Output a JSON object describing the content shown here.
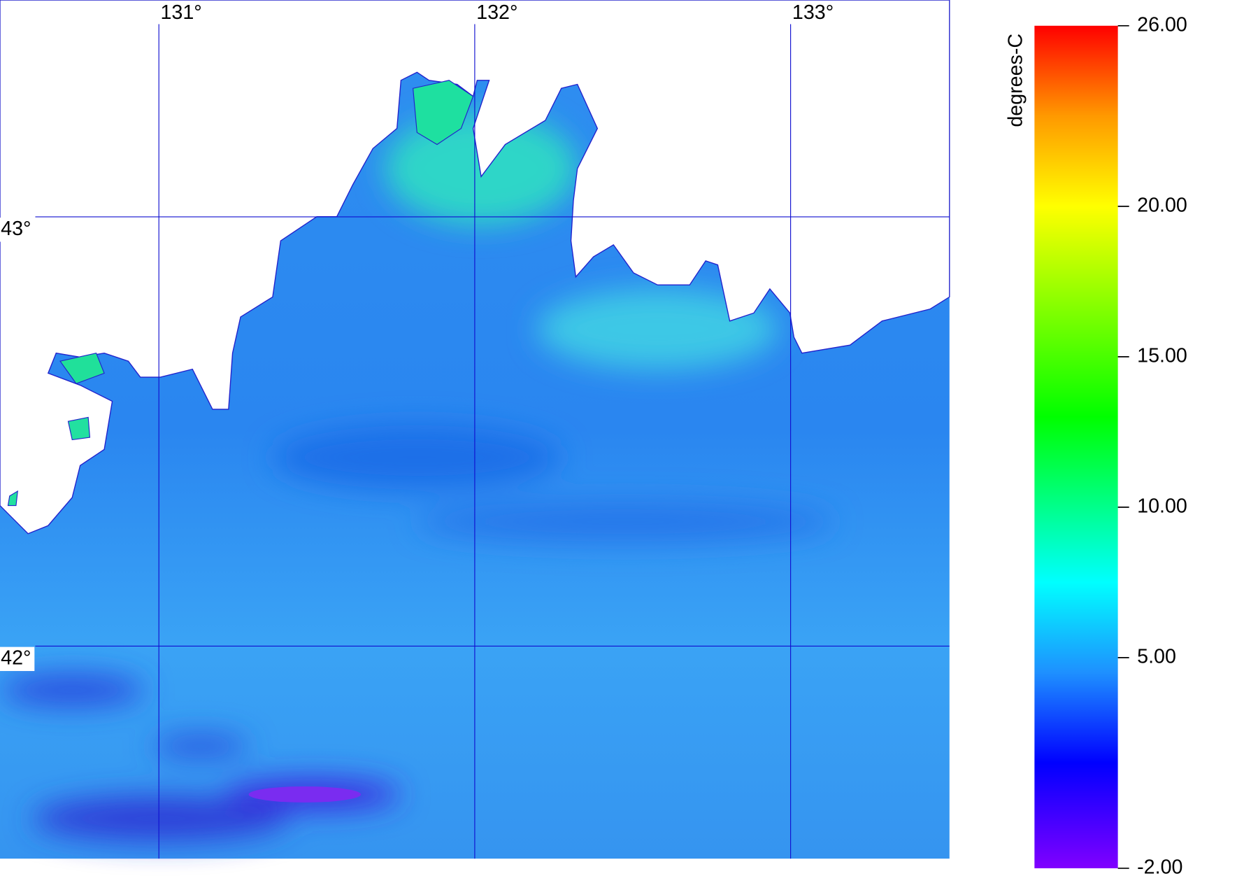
{
  "map": {
    "xlim": [
      130.497,
      133.503
    ],
    "ylim": [
      41.505,
      43.505
    ],
    "lon_ticks": [
      {
        "value": 131,
        "label": "131°"
      },
      {
        "value": 132,
        "label": "132°"
      },
      {
        "value": 133,
        "label": "133°"
      }
    ],
    "lat_ticks": [
      {
        "value": 43,
        "label": "43°"
      },
      {
        "value": 42,
        "label": "42°"
      }
    ]
  },
  "colorbar": {
    "label": "degrees-C",
    "lim": [
      -2,
      26
    ],
    "ticks": [
      {
        "value": 26,
        "label": "26.00"
      },
      {
        "value": 20,
        "label": "20.00"
      },
      {
        "value": 15,
        "label": "15.00"
      },
      {
        "value": 10,
        "label": "10.00"
      },
      {
        "value": 5,
        "label": "5.00"
      },
      {
        "value": -2,
        "label": "-2.00"
      }
    ],
    "stops": [
      {
        "value": -2,
        "color": "#8000ff"
      },
      {
        "value": 1.5,
        "color": "#0000ff"
      },
      {
        "value": 4.5,
        "color": "#1e90ff"
      },
      {
        "value": 7.5,
        "color": "#00ffff"
      },
      {
        "value": 13,
        "color": "#00ff00"
      },
      {
        "value": 20,
        "color": "#ffff00"
      },
      {
        "value": 23,
        "color": "#ff9900"
      },
      {
        "value": 26,
        "color": "#ff0000"
      }
    ]
  }
}
